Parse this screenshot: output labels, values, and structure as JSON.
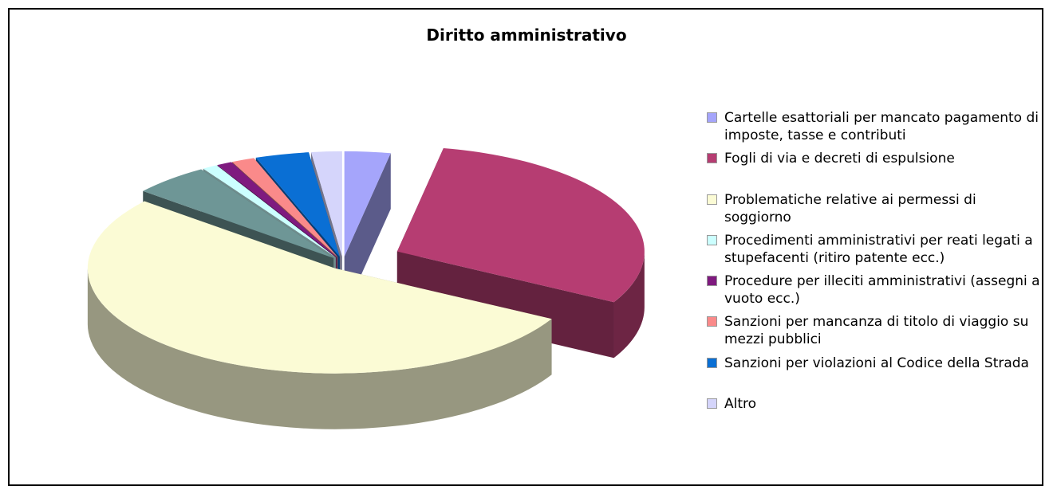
{
  "chart_data": {
    "type": "pie",
    "title": "Diritto amministrativo",
    "categories": [
      "Cartelle esattoriali per mancato pagamento di imposte, tasse e contributi",
      "Fogli di via e decreti di espulsione",
      "Problematiche relative ai permessi di soggiorno",
      null,
      "Procedimenti amministrativi per reati legati a stupefacenti (ritiro patente ecc.)",
      "Procedure per illeciti amministrativi (assegni a vuoto ecc.)",
      "Sanzioni per mancanza di titolo di viaggio su mezzi pubblici",
      "Sanzioni per violazioni al Codice della Strada",
      "Altro"
    ],
    "values": [
      3,
      30,
      53,
      5,
      1,
      1,
      1.5,
      3.5,
      2
    ],
    "colors": [
      "#a5a5fb",
      "#b63d72",
      "#fbfbd5",
      "#6e9696",
      "#ccffff",
      "#7f1a7f",
      "#fa8a8a",
      "#0a6fd4",
      "#d5d5fb"
    ]
  }
}
